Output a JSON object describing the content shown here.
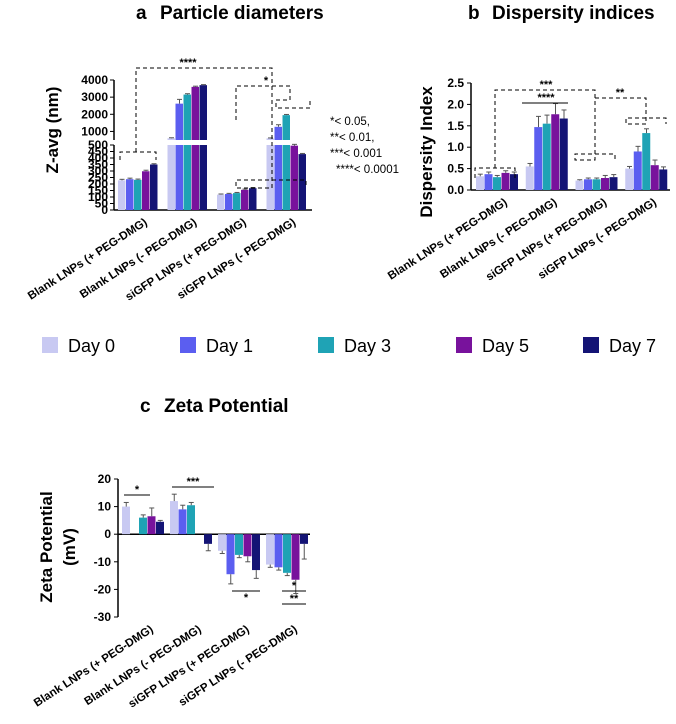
{
  "colors": {
    "Day 0": "#c8c9f2",
    "Day 1": "#5b5ef0",
    "Day 3": "#1fa3b5",
    "Day 5": "#78129c",
    "Day 7": "#141475"
  },
  "legend": [
    "Day 0",
    "Day 1",
    "Day 3",
    "Day 5",
    "Day 7"
  ],
  "significance_note": [
    "*< 0.05,",
    "**< 0.01,",
    "***< 0.001",
    "****< 0.0001"
  ],
  "chart_data": [
    {
      "panel": "a",
      "type": "bar",
      "title": "Particle diameters",
      "ylabel": "Z-avg (nm)",
      "broken_axis": true,
      "ylim_lower": [
        0,
        500
      ],
      "ylim_upper": [
        500,
        4000
      ],
      "yticks_lower": [
        "0",
        "50",
        "100",
        "150",
        "200",
        "250",
        "300",
        "350",
        "400",
        "450",
        "500"
      ],
      "yticks_upper": [
        "1000",
        "2000",
        "3000",
        "4000"
      ],
      "categories": [
        "Blank LNPs (+ PEG-DMG)",
        "Blank LNPs (- PEG-DMG)",
        "siGFP LNPs (+ PEG-DMG)",
        "siGFP LNPs (- PEG-DMG)"
      ],
      "series": [
        {
          "name": "Day 0",
          "values": [
            228,
            600,
            118,
            600
          ],
          "errors": [
            8,
            30,
            5,
            20
          ]
        },
        {
          "name": "Day 1",
          "values": [
            237,
            2620,
            123,
            1270
          ],
          "errors": [
            8,
            250,
            5,
            120
          ]
        },
        {
          "name": "Day 3",
          "values": [
            232,
            3150,
            130,
            1950
          ],
          "errors": [
            6,
            50,
            5,
            40
          ]
        },
        {
          "name": "Day 5",
          "values": [
            298,
            3600,
            155,
            495
          ],
          "errors": [
            8,
            40,
            6,
            10
          ]
        },
        {
          "name": "Day 7",
          "values": [
            350,
            3700,
            168,
            430
          ],
          "errors": [
            6,
            30,
            5,
            5
          ]
        }
      ],
      "annotations": [
        "****",
        "*"
      ]
    },
    {
      "panel": "b",
      "type": "bar",
      "title": "Dispersity indices",
      "ylabel": "Dispersity Index",
      "ylim": [
        0,
        2.5
      ],
      "yticks": [
        "0.0",
        "0.5",
        "1.0",
        "1.5",
        "2.0",
        "2.5"
      ],
      "categories": [
        "Blank LNPs (+ PEG-DMG)",
        "Blank LNPs (- PEG-DMG)",
        "siGFP LNPs (+ PEG-DMG)",
        "siGFP LNPs (- PEG-DMG)"
      ],
      "series": [
        {
          "name": "Day 0",
          "values": [
            0.32,
            0.55,
            0.22,
            0.5
          ],
          "errors": [
            0.05,
            0.07,
            0.02,
            0.05
          ]
        },
        {
          "name": "Day 1",
          "values": [
            0.37,
            1.47,
            0.25,
            0.9
          ],
          "errors": [
            0.05,
            0.25,
            0.03,
            0.12
          ]
        },
        {
          "name": "Day 3",
          "values": [
            0.3,
            1.55,
            0.25,
            1.33
          ],
          "errors": [
            0.04,
            0.2,
            0.03,
            0.1
          ]
        },
        {
          "name": "Day 5",
          "values": [
            0.4,
            1.77,
            0.28,
            0.58
          ],
          "errors": [
            0.05,
            0.25,
            0.06,
            0.12
          ]
        },
        {
          "name": "Day 7",
          "values": [
            0.37,
            1.67,
            0.3,
            0.48
          ],
          "errors": [
            0.05,
            0.2,
            0.06,
            0.06
          ]
        }
      ],
      "annotations": [
        "***",
        "****",
        "**"
      ]
    },
    {
      "panel": "c",
      "type": "bar",
      "title": "Zeta Potential",
      "ylabel": "Zeta Potential (mV)",
      "ylim": [
        -30,
        20
      ],
      "yticks": [
        "20",
        "10",
        "0",
        "-10",
        "-20",
        "-30"
      ],
      "categories": [
        "Blank LNPs (+ PEG-DMG)",
        "Blank LNPs (- PEG-DMG)",
        "siGFP LNPs (+ PEG-DMG)",
        "siGFP LNPs (- PEG-DMG)"
      ],
      "series": [
        {
          "name": "Day 0",
          "values": [
            10,
            12,
            -6,
            -11
          ],
          "errors": [
            1.5,
            2.5,
            1,
            1
          ]
        },
        {
          "name": "Day 1",
          "values": [
            0,
            9,
            -14.5,
            -12
          ],
          "errors": [
            0,
            1.5,
            3.5,
            1
          ]
        },
        {
          "name": "Day 3",
          "values": [
            6,
            10.5,
            -7.5,
            -14
          ],
          "errors": [
            1,
            1,
            1,
            1
          ]
        },
        {
          "name": "Day 5",
          "values": [
            6.5,
            0,
            -8,
            -16.5
          ],
          "errors": [
            3,
            2,
            2,
            5
          ]
        },
        {
          "name": "Day 7",
          "values": [
            4.5,
            -3.5,
            -13,
            -3.5
          ],
          "errors": [
            0.5,
            2.5,
            3,
            5.5
          ]
        }
      ],
      "annotations": [
        "*",
        "***",
        "*",
        "*",
        "**"
      ]
    }
  ]
}
